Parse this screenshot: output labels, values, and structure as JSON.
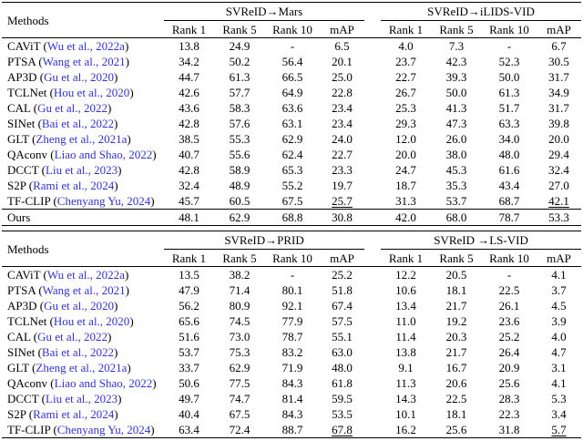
{
  "page": {
    "background": "#ffffff",
    "text_color": "#000000",
    "citation_color": "#3232d2"
  },
  "tables": [
    {
      "methods_label": "Methods",
      "groups": [
        "SVReID→Mars",
        "SVReID→iLIDS-VID"
      ],
      "subheaders": [
        "Rank 1",
        "Rank 5",
        "Rank 10",
        "mAP"
      ],
      "rows": [
        {
          "method": "CAViT",
          "citation": "Wu et al., 2022a",
          "values": [
            "13.8",
            "24.9",
            "-",
            "6.5",
            "4.0",
            "7.3",
            "-",
            "6.7"
          ]
        },
        {
          "method": "PTSA",
          "citation": "Wang et al., 2021",
          "values": [
            "34.2",
            "50.2",
            "56.4",
            "20.1",
            "23.7",
            "42.3",
            "52.3",
            "30.5"
          ]
        },
        {
          "method": "AP3D",
          "citation": "Gu et al., 2020",
          "values": [
            "44.7",
            "61.3",
            "66.5",
            "25.0",
            "22.7",
            "39.3",
            "50.0",
            "31.7"
          ]
        },
        {
          "method": "TCLNet",
          "citation": "Hou et al., 2020",
          "values": [
            "42.6",
            "57.7",
            "64.9",
            "22.8",
            "26.7",
            "50.0",
            "61.3",
            "34.9"
          ]
        },
        {
          "method": "CAL",
          "citation": "Gu et al., 2022",
          "values": [
            "43.6",
            "58.3",
            "63.6",
            "23.4",
            "25.3",
            "41.3",
            "51.7",
            "31.7"
          ]
        },
        {
          "method": "SINet",
          "citation": "Bai et al., 2022",
          "values": [
            "42.8",
            "57.6",
            "63.1",
            "23.4",
            "29.3",
            "47.3",
            "63.3",
            "39.8"
          ]
        },
        {
          "method": "GLT",
          "citation": "Zheng et al., 2021a",
          "values": [
            "38.5",
            "55.3",
            "62.9",
            "24.0",
            "12.0",
            "26.0",
            "34.0",
            "20.0"
          ]
        },
        {
          "method": "QAconv",
          "citation": "Liao and Shao, 2022",
          "values": [
            "40.7",
            "55.6",
            "62.4",
            "22.7",
            "20.0",
            "38.0",
            "48.0",
            "29.4"
          ]
        },
        {
          "method": "DCCT",
          "citation": "Liu et al., 2023",
          "values": [
            "42.8",
            "58.9",
            "65.3",
            "23.3",
            "24.7",
            "45.3",
            "61.6",
            "32.4"
          ]
        },
        {
          "method": "S2P",
          "citation": "Rami et al., 2024",
          "values": [
            "32.4",
            "48.9",
            "55.2",
            "19.7",
            "18.7",
            "35.3",
            "43.4",
            "27.0"
          ]
        },
        {
          "method": "TF-CLIP",
          "citation": "Chenyang Yu, 2024",
          "values": [
            "45.7",
            "60.5",
            "67.5",
            "25.7",
            "31.3",
            "53.7",
            "68.7",
            "42.1"
          ],
          "underline": [
            3,
            7
          ]
        },
        {
          "method": "Ours",
          "ours": true,
          "values": [
            "48.1",
            "62.9",
            "68.8",
            "30.8",
            "42.0",
            "68.0",
            "78.7",
            "53.3"
          ]
        }
      ]
    },
    {
      "methods_label": "Methods",
      "groups": [
        "SVReID→PRID",
        "SVReID →LS-VID"
      ],
      "subheaders": [
        "Rank 1",
        "Rank 5",
        "Rank 10",
        "mAP"
      ],
      "rows": [
        {
          "method": "CAViT",
          "citation": "Wu et al., 2022a",
          "values": [
            "13.5",
            "38.2",
            "-",
            "25.2",
            "12.2",
            "20.5",
            "-",
            "4.1"
          ]
        },
        {
          "method": "PTSA",
          "citation": "Wang et al., 2021",
          "values": [
            "47.9",
            "71.4",
            "80.1",
            "51.8",
            "10.6",
            "18.1",
            "22.5",
            "3.7"
          ]
        },
        {
          "method": "AP3D",
          "citation": "Gu et al., 2020",
          "values": [
            "56.2",
            "80.9",
            "92.1",
            "67.4",
            "13.4",
            "21.7",
            "26.1",
            "4.5"
          ]
        },
        {
          "method": "TCLNet",
          "citation": "Hou et al., 2020",
          "values": [
            "65.6",
            "74.5",
            "77.9",
            "57.5",
            "11.0",
            "19.2",
            "23.6",
            "3.9"
          ]
        },
        {
          "method": "CAL",
          "citation": "Gu et al., 2022",
          "values": [
            "51.6",
            "73.0",
            "78.7",
            "55.1",
            "11.4",
            "20.3",
            "25.2",
            "4.0"
          ]
        },
        {
          "method": "SINet",
          "citation": "Bai et al., 2022",
          "values": [
            "53.7",
            "75.3",
            "83.2",
            "63.0",
            "13.8",
            "21.7",
            "26.4",
            "4.7"
          ]
        },
        {
          "method": "GLT",
          "citation": "Zheng et al., 2021a",
          "values": [
            "33.7",
            "62.9",
            "71.9",
            "48.0",
            "9.1",
            "16.7",
            "20.9",
            "3.1"
          ]
        },
        {
          "method": "QAconv",
          "citation": "Liao and Shao, 2022",
          "values": [
            "50.6",
            "77.5",
            "84.3",
            "61.8",
            "11.3",
            "20.6",
            "25.6",
            "4.1"
          ]
        },
        {
          "method": "DCCT",
          "citation": "Liu et al., 2023",
          "values": [
            "49.7",
            "74.7",
            "81.4",
            "59.5",
            "14.3",
            "22.5",
            "28.3",
            "5.3"
          ]
        },
        {
          "method": "S2P",
          "citation": "Rami et al., 2024",
          "values": [
            "40.4",
            "67.5",
            "84.3",
            "53.5",
            "10.1",
            "18.1",
            "22.3",
            "3.4"
          ]
        },
        {
          "method": "TF-CLIP",
          "citation": "Chenyang Yu, 2024",
          "values": [
            "63.4",
            "72.4",
            "88.7",
            "67.8",
            "16.2",
            "25.6",
            "31.8",
            "5.7"
          ],
          "underline": [
            3,
            7
          ]
        },
        {
          "method": "Ours",
          "ours": true,
          "values": [
            "71.9",
            "87.6",
            "89.9",
            "79.1",
            "20.1",
            "31.9",
            "38.0",
            "8.6"
          ]
        }
      ]
    }
  ]
}
